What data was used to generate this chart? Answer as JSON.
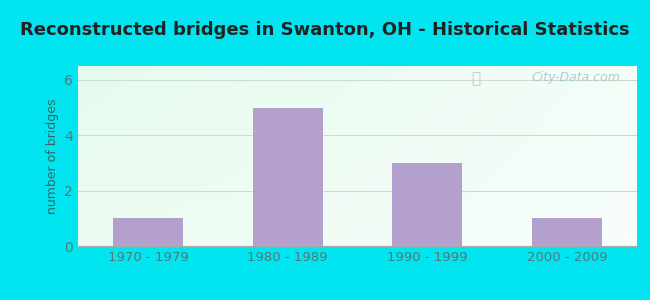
{
  "categories": [
    "1970 - 1979",
    "1980 - 1989",
    "1990 - 1999",
    "2000 - 2009"
  ],
  "values": [
    1,
    5,
    3,
    1
  ],
  "bar_color": "#b3a0cc",
  "title": "Reconstructed bridges in Swanton, OH - Historical Statistics",
  "ylabel": "number of bridges",
  "ylim": [
    0,
    6.5
  ],
  "yticks": [
    0,
    2,
    4,
    6
  ],
  "background_color": "#00e5f0",
  "title_fontsize": 13,
  "axis_label_color": "#336666",
  "tick_color": "#557777",
  "watermark_text": "City-Data.com",
  "bar_width": 0.5,
  "grid_color": "#ccddcc",
  "title_color": "#222222"
}
